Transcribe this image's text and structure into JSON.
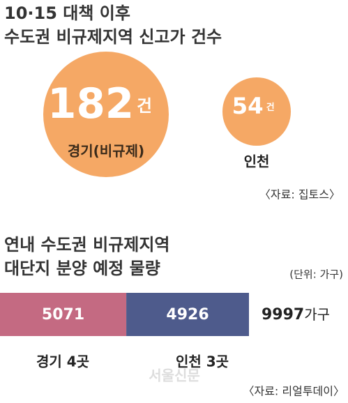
{
  "chart_data": [
    {
      "type": "bubble",
      "title": [
        "10·15 대책 이후",
        "수도권 비규제지역 신고가 건수"
      ],
      "categories": [
        "경기(비규제)",
        "인천"
      ],
      "values": [
        182,
        54
      ],
      "unit": "건",
      "color": "#f5a865",
      "source": "〈자료: 집토스〉"
    },
    {
      "type": "stacked_hbar",
      "title": [
        "연내 수도권 비규제지역",
        "대단지 분양 예정 물량"
      ],
      "unit_label": "(단위: 가구)",
      "series": [
        {
          "name": "경기 4곳",
          "color": "#c46a82",
          "values": [
            5071
          ]
        },
        {
          "name": "인천 3곳",
          "color": "#4e5b8c",
          "values": [
            4926
          ]
        }
      ],
      "total": 9997,
      "total_unit": "가구",
      "source": "〈자료: 리얼투데이〉"
    }
  ],
  "watermark": "서울신문"
}
